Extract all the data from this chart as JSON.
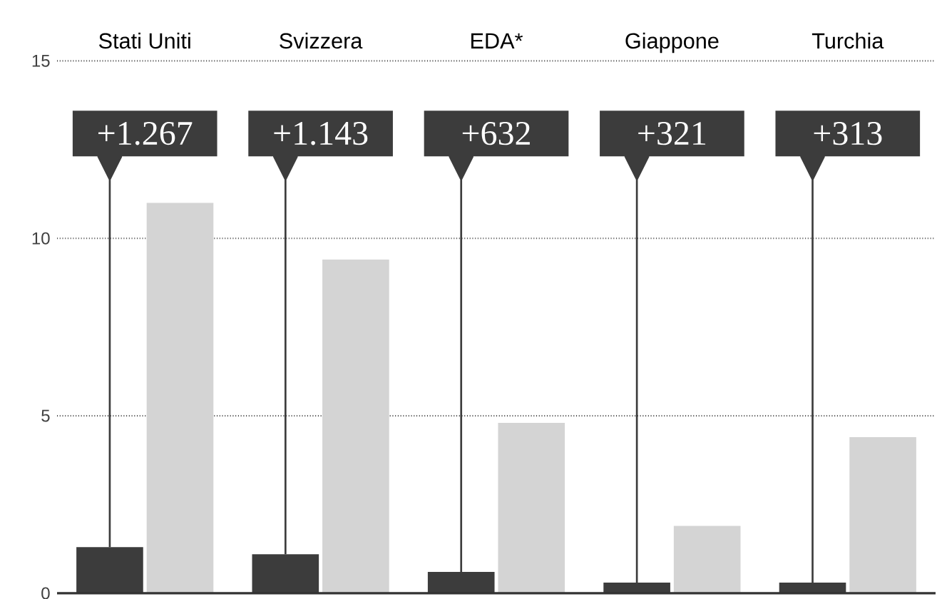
{
  "chart_data": {
    "type": "bar",
    "categories": [
      "Stati Uniti",
      "Svizzera",
      "EDA*",
      "Giappone",
      "Turchia"
    ],
    "series": [
      {
        "color": "#3c3c3c",
        "values": [
          1.3,
          1.1,
          0.6,
          0.3,
          0.3
        ]
      },
      {
        "color": "#d4d4d4",
        "values": [
          11.0,
          9.4,
          4.8,
          1.9,
          4.4
        ]
      }
    ],
    "annotations": [
      "+1.267",
      "+1.143",
      "+632",
      "+321",
      "+313"
    ],
    "ylim": [
      0,
      15
    ],
    "yticks": [
      0,
      5,
      10,
      15
    ],
    "grid": "y"
  }
}
